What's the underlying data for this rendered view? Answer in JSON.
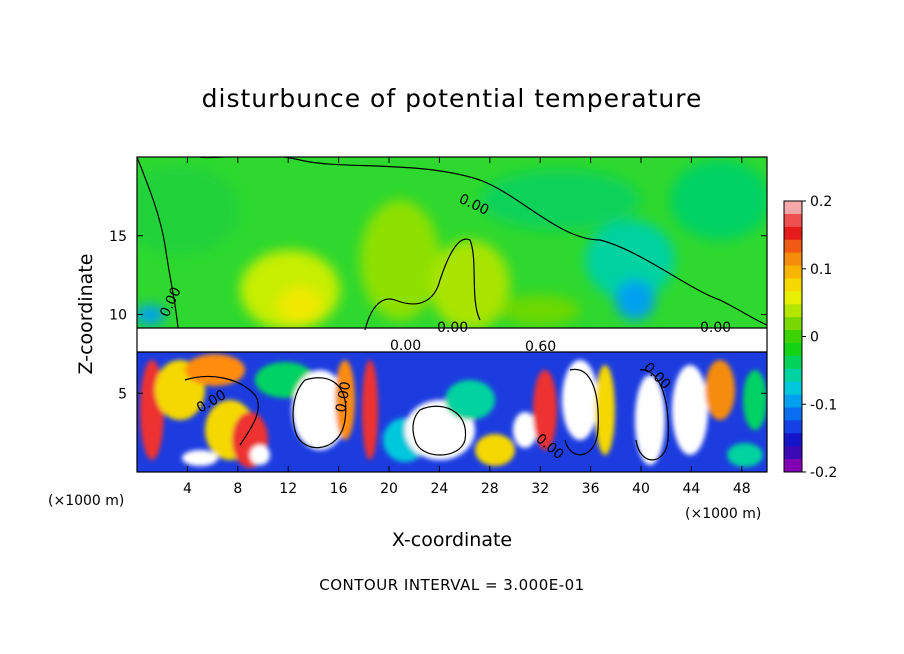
{
  "chart_data": {
    "type": "heatmap",
    "title": "disturbunce of potential temperature",
    "xlabel": "X-coordinate",
    "ylabel": "Z-coordinate",
    "x_unit_label": "(×1000 m)",
    "x_unit_label_right": "(×1000 m)",
    "xlim": [
      0,
      50
    ],
    "ylim": [
      0,
      20
    ],
    "x_ticks": [
      4,
      8,
      12,
      16,
      20,
      24,
      28,
      32,
      36,
      40,
      44,
      48
    ],
    "y_ticks": [
      5,
      10,
      15
    ],
    "colorbar": {
      "range": [
        -0.2,
        0.2
      ],
      "ticks": [
        "0.2",
        "0.1",
        "0",
        "-0.1",
        "-0.2"
      ],
      "colors_top_to_bottom": [
        "#f7a8a8",
        "#ee5050",
        "#e61c1c",
        "#f05a14",
        "#f58c0a",
        "#f8b400",
        "#f5d800",
        "#e6f000",
        "#b4e600",
        "#78d800",
        "#3cd200",
        "#14d214",
        "#00d25a",
        "#00d2a0",
        "#00c8dc",
        "#00a0f0",
        "#0a6ef0",
        "#1440e6",
        "#1414c8",
        "#3c0ab4",
        "#8200b4"
      ]
    },
    "contour_labels": [
      "0.00",
      "0.00",
      "0.00",
      "0.00",
      "0.60",
      "0.00",
      "0.00",
      "0.00",
      "0.00",
      "0.00"
    ],
    "contour_interval_text": "CONTOUR INTERVAL = 3.000E-01"
  }
}
